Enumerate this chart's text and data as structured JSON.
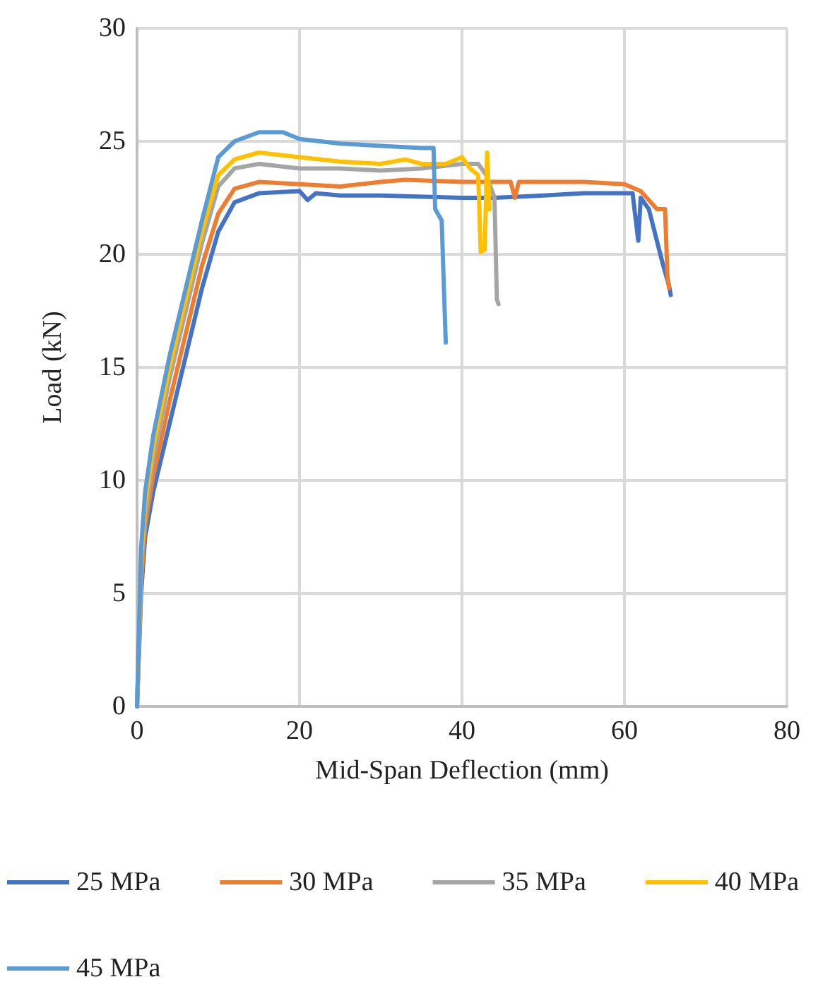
{
  "chart_data": {
    "type": "line",
    "xlabel": "Mid-Span Deflection (mm)",
    "ylabel": "Load (kN)",
    "xlim": [
      0,
      80
    ],
    "xticks": [
      0,
      20,
      40,
      60,
      80
    ],
    "ylim": [
      0,
      30
    ],
    "yticks": [
      0,
      5,
      10,
      15,
      20,
      25,
      30
    ],
    "grid": true,
    "legend": "bottom",
    "marker": "none",
    "line_style": "solid",
    "series": [
      {
        "name": "25 MPa",
        "color": "#4472c4",
        "x": [
          0,
          0.5,
          1,
          2,
          4,
          6,
          8,
          10,
          12,
          15,
          20,
          21,
          22,
          25,
          30,
          40,
          44,
          50,
          55,
          61,
          61.7,
          62,
          63,
          64.7,
          65.5,
          65.7
        ],
        "values": [
          0,
          5,
          7.5,
          9.5,
          12.5,
          15.5,
          18.5,
          21,
          22.3,
          22.7,
          22.8,
          22.4,
          22.7,
          22.6,
          22.6,
          22.5,
          22.5,
          22.6,
          22.7,
          22.7,
          20.6,
          22.5,
          22,
          19.6,
          18.6,
          18.2
        ]
      },
      {
        "name": "30 MPa",
        "color": "#ed7d31",
        "x": [
          0,
          0.5,
          1,
          2,
          4,
          6,
          8,
          10,
          12,
          15,
          20,
          25,
          30,
          33,
          40,
          46,
          46.5,
          47,
          55,
          60,
          62,
          64,
          65,
          65.3,
          65.5
        ],
        "values": [
          0,
          5.5,
          8,
          10.2,
          13.5,
          16.5,
          19.5,
          21.8,
          22.9,
          23.2,
          23.1,
          23,
          23.2,
          23.3,
          23.2,
          23.2,
          22.5,
          23.2,
          23.2,
          23.1,
          22.8,
          22,
          22,
          19,
          18.5
        ]
      },
      {
        "name": "35 MPa",
        "color": "#a5a5a5",
        "x": [
          0,
          0.5,
          1,
          2,
          4,
          6,
          8,
          10,
          12,
          15,
          20,
          25,
          30,
          35,
          40,
          42,
          43,
          44,
          44.3,
          44.5
        ],
        "values": [
          0,
          6,
          8.5,
          11,
          14.5,
          17.5,
          20.5,
          23,
          23.8,
          24,
          23.8,
          23.8,
          23.7,
          23.8,
          24,
          24,
          23.5,
          22.5,
          18,
          17.8
        ]
      },
      {
        "name": "40 MPa",
        "color": "#ffc000",
        "x": [
          0,
          0.5,
          1,
          2,
          4,
          6,
          8,
          10,
          12,
          15,
          20,
          25,
          30,
          33,
          35,
          38,
          40,
          41,
          42,
          42.3,
          42.8,
          43.1,
          43.4
        ],
        "values": [
          0,
          6.5,
          9,
          11.5,
          15,
          18,
          21,
          23.5,
          24.2,
          24.5,
          24.3,
          24.1,
          24,
          24.2,
          24,
          24,
          24.3,
          23.8,
          23.5,
          20.1,
          20.2,
          24.5,
          22
        ]
      },
      {
        "name": "45 MPa",
        "color": "#5b9bd5",
        "x": [
          0,
          0.5,
          1,
          2,
          4,
          6,
          8,
          10,
          12,
          15,
          18,
          20,
          25,
          30,
          35,
          36.5,
          36.7,
          37.5,
          38
        ],
        "values": [
          0,
          7,
          9.5,
          12,
          15.5,
          18.5,
          21.5,
          24.3,
          25,
          25.4,
          25.4,
          25.1,
          24.9,
          24.8,
          24.7,
          24.7,
          22,
          21.5,
          16.1
        ]
      }
    ]
  }
}
